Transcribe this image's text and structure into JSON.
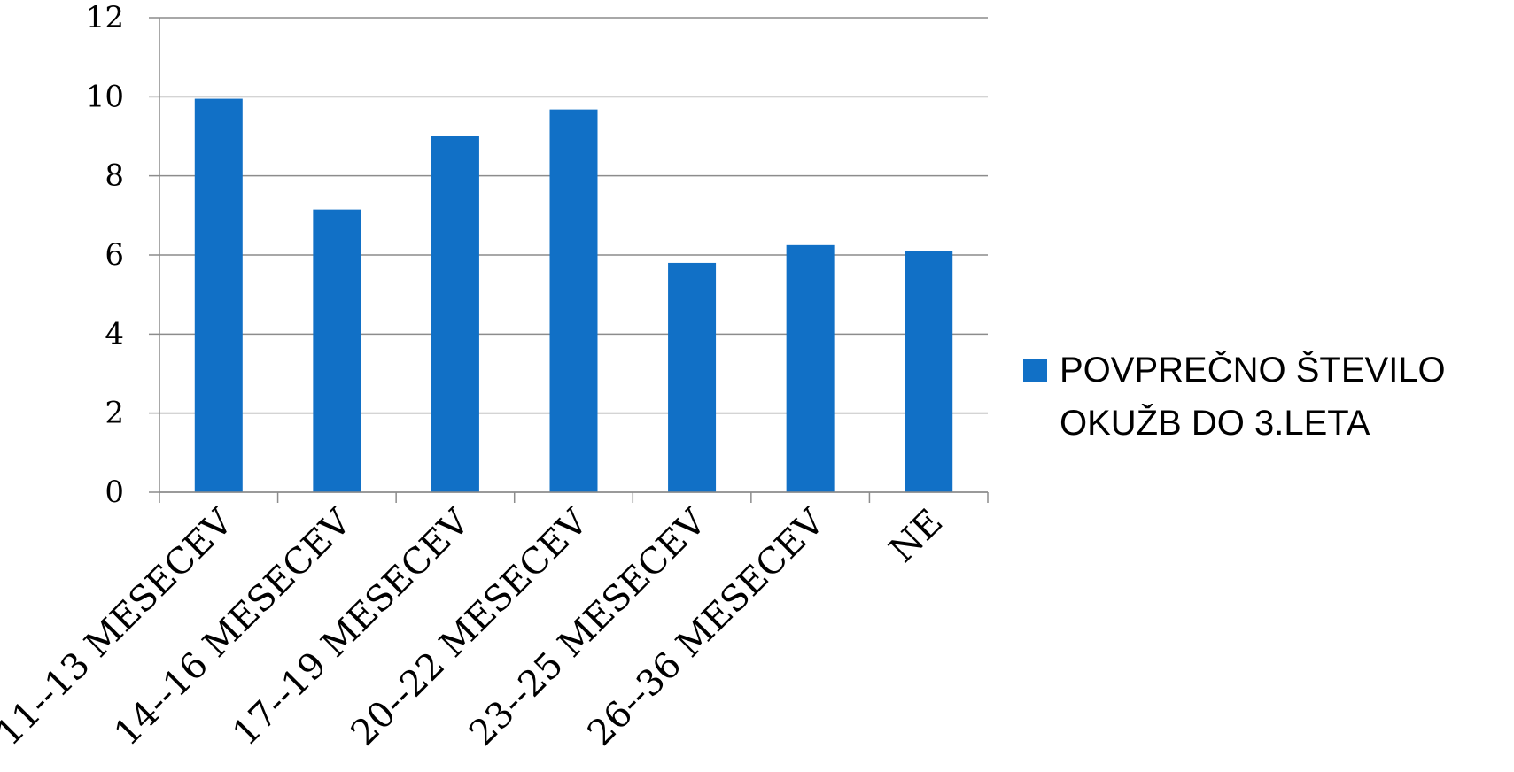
{
  "chart_data": {
    "type": "bar",
    "categories": [
      "11--13 MESECEV",
      "14--16 MESECEV",
      "17--19 MESECEV",
      "20--22 MESECEV",
      "23--25 MESECEV",
      "26--36 MESECEV",
      "NE"
    ],
    "series": [
      {
        "name": "POVPREČNO ŠTEVILO OKUŽB DO 3.LETA",
        "values": [
          9.95,
          7.15,
          9.0,
          9.68,
          5.8,
          6.25,
          6.1
        ],
        "color": "#1170C6"
      }
    ],
    "legend_lines": [
      "POVPREČNO ŠTEVILO",
      "OKUŽB DO 3.LETA"
    ],
    "yticks": [
      "0",
      "2",
      "4",
      "6",
      "8",
      "10",
      "12"
    ],
    "ylim": [
      0,
      12
    ],
    "grid": true,
    "legend_position": "right"
  }
}
